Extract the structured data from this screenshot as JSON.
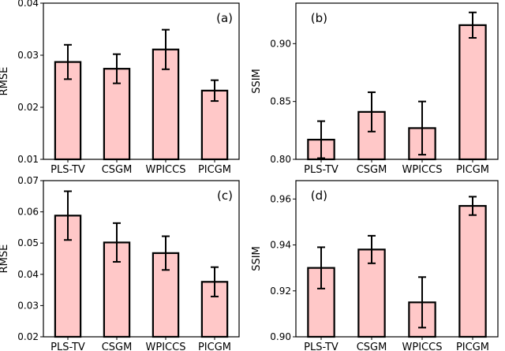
{
  "style": {
    "bar_fill": "#ffc8c8",
    "bar_edge": "#000000",
    "error_color": "#000000",
    "background": "#ffffff"
  },
  "chart_data": [
    {
      "type": "bar",
      "panel_label": "(a)",
      "ylabel": "RMSE",
      "categories": [
        "PLS-TV",
        "CSGM",
        "WPICCS",
        "PICGM"
      ],
      "values": [
        0.0287,
        0.0274,
        0.0311,
        0.0232
      ],
      "errors": [
        0.0033,
        0.0028,
        0.0038,
        0.002
      ],
      "ylim": [
        0.01,
        0.04
      ],
      "yticks": [
        0.01,
        0.02,
        0.03,
        0.04
      ],
      "ytick_labels": [
        "0.01",
        "0.02",
        "0.03",
        "0.04"
      ]
    },
    {
      "type": "bar",
      "panel_label": "(b)",
      "ylabel": "SSIM",
      "categories": [
        "PLS-TV",
        "CSGM",
        "WPICCS",
        "PICGM"
      ],
      "values": [
        0.817,
        0.841,
        0.827,
        0.916
      ],
      "errors": [
        0.016,
        0.017,
        0.023,
        0.011
      ],
      "ylim": [
        0.8,
        0.935
      ],
      "yticks": [
        0.8,
        0.85,
        0.9
      ],
      "ytick_labels": [
        "0.80",
        "0.85",
        "0.90"
      ]
    },
    {
      "type": "bar",
      "panel_label": "(c)",
      "ylabel": "RMSE",
      "categories": [
        "PLS-TV",
        "CSGM",
        "WPICCS",
        "PICGM"
      ],
      "values": [
        0.0588,
        0.0502,
        0.0468,
        0.0376
      ],
      "errors": [
        0.0078,
        0.0062,
        0.0054,
        0.0047
      ],
      "ylim": [
        0.02,
        0.07
      ],
      "yticks": [
        0.02,
        0.03,
        0.04,
        0.05,
        0.06,
        0.07
      ],
      "ytick_labels": [
        "0.02",
        "0.03",
        "0.04",
        "0.05",
        "0.06",
        "0.07"
      ]
    },
    {
      "type": "bar",
      "panel_label": "(d)",
      "ylabel": "SSIM",
      "categories": [
        "PLS-TV",
        "CSGM",
        "WPICCS",
        "PICGM"
      ],
      "values": [
        0.93,
        0.938,
        0.915,
        0.957
      ],
      "errors": [
        0.009,
        0.006,
        0.011,
        0.004
      ],
      "ylim": [
        0.9,
        0.968
      ],
      "yticks": [
        0.9,
        0.92,
        0.94,
        0.96
      ],
      "ytick_labels": [
        "0.90",
        "0.92",
        "0.94",
        "0.96"
      ]
    }
  ]
}
